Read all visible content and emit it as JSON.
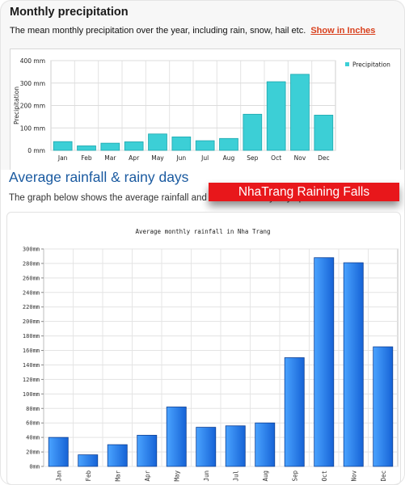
{
  "top": {
    "title": "Monthly precipitation",
    "description": "The mean monthly precipitation over the year, including rain, snow, hail etc.",
    "link_label": "Show in Inches"
  },
  "second": {
    "heading": "Average rainfall & rainy days",
    "description": "The graph below shows the average rainfall and number of rainy days per month.",
    "badge": "NhaTrang Raining Falls"
  },
  "colors": {
    "chart1_bar": "#3ccfd6",
    "chart1_bar_stroke": "#1ba6ad",
    "chart2_bar_light": "#4aa3ff",
    "chart2_bar_dark": "#1663d6",
    "badge_bg": "#e8171b",
    "heading": "#1a5aa0",
    "link": "#d9411e"
  },
  "chart_data": [
    {
      "type": "bar",
      "title": "",
      "xlabel": "",
      "ylabel": "Precipitation",
      "categories": [
        "Jan",
        "Feb",
        "Mar",
        "Apr",
        "May",
        "Jun",
        "Jul",
        "Aug",
        "Sep",
        "Oct",
        "Nov",
        "Dec"
      ],
      "series": [
        {
          "name": "Precipitation",
          "values": [
            39,
            20,
            32,
            38,
            73,
            60,
            43,
            53,
            161,
            306,
            339,
            157
          ]
        }
      ],
      "ylim": [
        0,
        400
      ],
      "yticks": [
        "0 mm",
        "100 mm",
        "200 mm",
        "300 mm",
        "400 mm"
      ],
      "grid": true,
      "legend": "top-right"
    },
    {
      "type": "bar",
      "title": "Average monthly rainfall in Nha Trang",
      "xlabel": "",
      "ylabel": "",
      "categories": [
        "Jan",
        "Feb",
        "Mar",
        "Apr",
        "May",
        "Jun",
        "Jul",
        "Aug",
        "Sep",
        "Oct",
        "Nov",
        "Dec"
      ],
      "values": [
        40,
        16,
        30,
        43,
        82,
        54,
        56,
        60,
        150,
        288,
        281,
        165
      ],
      "ylim": [
        0,
        300
      ],
      "yticks": [
        "0mm",
        "20mm",
        "40mm",
        "60mm",
        "80mm",
        "100mm",
        "120mm",
        "140mm",
        "160mm",
        "180mm",
        "200mm",
        "220mm",
        "240mm",
        "260mm",
        "280mm",
        "300mm"
      ],
      "grid": true
    }
  ]
}
